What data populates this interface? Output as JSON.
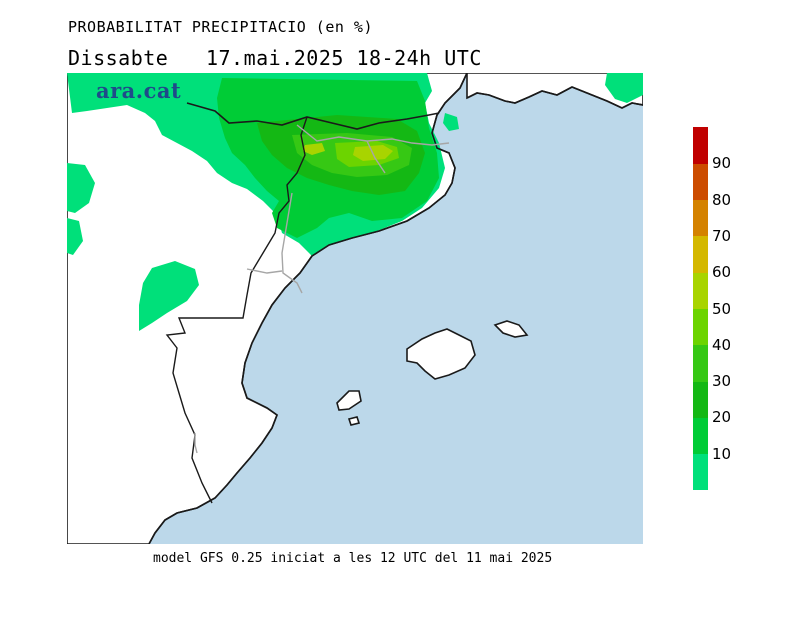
{
  "header": {
    "title": "PROBABILITAT PRECIPITACIO (en %)",
    "subtitle": "Dissabte   17.mai.2025 18-24h UTC"
  },
  "brand": {
    "logo_text": "ara.cat"
  },
  "footer": {
    "model_text": "model GFS 0.25 iniciat a les 12 UTC del 11 mai 2025"
  },
  "map": {
    "sea_color": "#bcd8ea",
    "land_color": "#ffffff",
    "coast_color": "#1a1a1a",
    "border_color": "#a6a6a6"
  },
  "legend": {
    "colors": [
      "#00e07a",
      "#00cc36",
      "#14b814",
      "#36c814",
      "#6cd400",
      "#a8d400",
      "#d4b800",
      "#d48200",
      "#cc4c00",
      "#c00000"
    ],
    "labels": [
      "10",
      "20",
      "30",
      "40",
      "50",
      "60",
      "70",
      "80",
      "90"
    ]
  }
}
